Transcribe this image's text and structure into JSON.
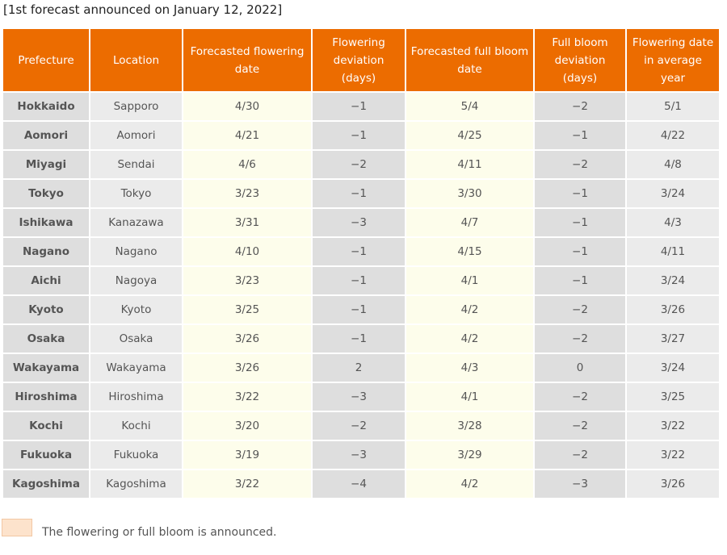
{
  "caption": "[1st forecast announced on January 12, 2022]",
  "headers": [
    "Prefecture",
    "Location",
    "Forecasted flowering date",
    "Flowering deviation (days)",
    "Forecasted full bloom date",
    "Full bloom deviation (days)",
    "Flowering date in average year"
  ],
  "rows": [
    {
      "prefecture": "Hokkaido",
      "location": "Sapporo",
      "flowering": "4/30",
      "flowering_dev": "−1",
      "full_bloom": "5/4",
      "full_bloom_dev": "−2",
      "average": "5/1"
    },
    {
      "prefecture": "Aomori",
      "location": "Aomori",
      "flowering": "4/21",
      "flowering_dev": "−1",
      "full_bloom": "4/25",
      "full_bloom_dev": "−1",
      "average": "4/22"
    },
    {
      "prefecture": "Miyagi",
      "location": "Sendai",
      "flowering": "4/6",
      "flowering_dev": "−2",
      "full_bloom": "4/11",
      "full_bloom_dev": "−2",
      "average": "4/8"
    },
    {
      "prefecture": "Tokyo",
      "location": "Tokyo",
      "flowering": "3/23",
      "flowering_dev": "−1",
      "full_bloom": "3/30",
      "full_bloom_dev": "−1",
      "average": "3/24"
    },
    {
      "prefecture": "Ishikawa",
      "location": "Kanazawa",
      "flowering": "3/31",
      "flowering_dev": "−3",
      "full_bloom": "4/7",
      "full_bloom_dev": "−1",
      "average": "4/3"
    },
    {
      "prefecture": "Nagano",
      "location": "Nagano",
      "flowering": "4/10",
      "flowering_dev": "−1",
      "full_bloom": "4/15",
      "full_bloom_dev": "−1",
      "average": "4/11"
    },
    {
      "prefecture": "Aichi",
      "location": "Nagoya",
      "flowering": "3/23",
      "flowering_dev": "−1",
      "full_bloom": "4/1",
      "full_bloom_dev": "−1",
      "average": "3/24"
    },
    {
      "prefecture": "Kyoto",
      "location": "Kyoto",
      "flowering": "3/25",
      "flowering_dev": "−1",
      "full_bloom": "4/2",
      "full_bloom_dev": "−2",
      "average": "3/26"
    },
    {
      "prefecture": "Osaka",
      "location": "Osaka",
      "flowering": "3/26",
      "flowering_dev": "−1",
      "full_bloom": "4/2",
      "full_bloom_dev": "−2",
      "average": "3/27"
    },
    {
      "prefecture": "Wakayama",
      "location": "Wakayama",
      "flowering": "3/26",
      "flowering_dev": "2",
      "full_bloom": "4/3",
      "full_bloom_dev": "0",
      "average": "3/24"
    },
    {
      "prefecture": "Hiroshima",
      "location": "Hiroshima",
      "flowering": "3/22",
      "flowering_dev": "−3",
      "full_bloom": "4/1",
      "full_bloom_dev": "−2",
      "average": "3/25"
    },
    {
      "prefecture": "Kochi",
      "location": "Kochi",
      "flowering": "3/20",
      "flowering_dev": "−2",
      "full_bloom": "3/28",
      "full_bloom_dev": "−2",
      "average": "3/22"
    },
    {
      "prefecture": "Fukuoka",
      "location": "Fukuoka",
      "flowering": "3/19",
      "flowering_dev": "−3",
      "full_bloom": "3/29",
      "full_bloom_dev": "−2",
      "average": "3/22"
    },
    {
      "prefecture": "Kagoshima",
      "location": "Kagoshima",
      "flowering": "3/22",
      "flowering_dev": "−4",
      "full_bloom": "4/2",
      "full_bloom_dev": "−3",
      "average": "3/26"
    }
  ],
  "legend": {
    "text": "The flowering or full bloom is announced.",
    "swatch_color": "#fde3cc"
  },
  "colors": {
    "header": "#ec6c00",
    "header_text": "#ffffff",
    "dark_cell": "#dedede",
    "light_cell": "#ebebeb",
    "cream_cell": "#fdfdeb"
  }
}
